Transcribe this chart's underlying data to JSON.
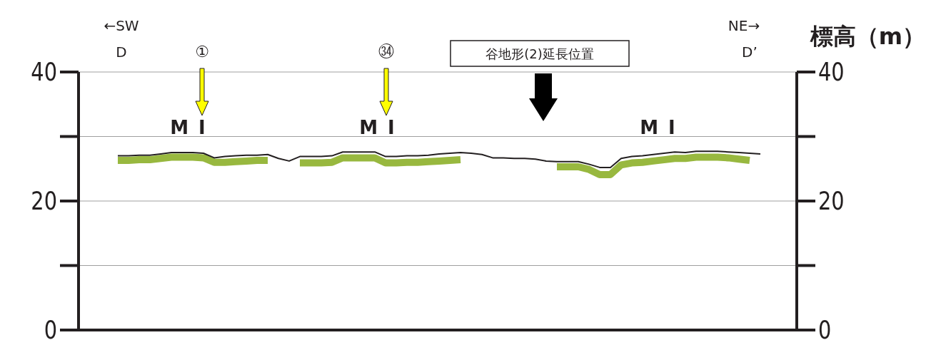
{
  "chart_data": {
    "type": "line",
    "categories": [
      null,
      null,
      null,
      null,
      null,
      null,
      null,
      null,
      null,
      null,
      null,
      null,
      null,
      null,
      null,
      null,
      null,
      null,
      null,
      null,
      null,
      null,
      null,
      null,
      null,
      null,
      null,
      null,
      null,
      null,
      null,
      null,
      null,
      null,
      null,
      null,
      null,
      null,
      null,
      null,
      null,
      null,
      null,
      null,
      null,
      null,
      null,
      null,
      null,
      null,
      null,
      null,
      null,
      null,
      null,
      null,
      null,
      null,
      null,
      null,
      null
    ],
    "series": [
      {
        "color": "#98b83f",
        "values": [
          26.3,
          26.3,
          26.4,
          26.4,
          26.6,
          26.8,
          26.8,
          26.8,
          26.7,
          26.0,
          26.0,
          26.1,
          26.2,
          26.3,
          26.3,
          null,
          null,
          25.9,
          25.9,
          25.9,
          26.0,
          26.7,
          26.7,
          26.7,
          26.7,
          25.9,
          25.9,
          26.0,
          26.0,
          26.1,
          26.2,
          26.3,
          26.4,
          null,
          null,
          null,
          null,
          null,
          null,
          null,
          null,
          25.3,
          25.3,
          25.3,
          24.9,
          24.1,
          24.1,
          25.6,
          25.9,
          26.0,
          26.2,
          26.4,
          26.6,
          26.6,
          26.8,
          26.8,
          26.8,
          26.7,
          26.5,
          26.3,
          null
        ]
      },
      {
        "color": "#231f20",
        "values": [
          27.0,
          27.0,
          27.1,
          27.1,
          27.3,
          27.5,
          27.5,
          27.5,
          27.4,
          26.7,
          26.9,
          27.0,
          27.1,
          27.1,
          27.2,
          26.6,
          26.2,
          26.9,
          26.9,
          26.9,
          27.0,
          27.6,
          27.6,
          27.6,
          27.6,
          26.9,
          26.9,
          27.0,
          27.0,
          27.1,
          27.3,
          27.4,
          27.5,
          27.4,
          27.2,
          26.7,
          26.7,
          26.6,
          26.6,
          26.5,
          26.2,
          26.1,
          26.1,
          26.1,
          25.7,
          25.2,
          25.2,
          26.6,
          26.9,
          27.0,
          27.2,
          27.4,
          27.6,
          27.5,
          27.7,
          27.7,
          27.7,
          27.6,
          27.5,
          27.4,
          27.3
        ]
      }
    ],
    "ylim": [
      0,
      40
    ],
    "yticks": [
      0,
      {
        "value": 10,
        "label": null
      },
      20,
      {
        "value": 30,
        "label": null
      },
      40
    ],
    "y2lim": [
      0,
      40
    ],
    "y2ticks": [
      0,
      {
        "value": 10,
        "label": null
      },
      20,
      {
        "value": 30,
        "label": null
      },
      40
    ],
    "y2label": "標高（m）",
    "grid": "y",
    "marker": "none",
    "line_style": "solid",
    "annotations": [
      "←SW",
      "D",
      "NE→",
      "D’",
      "①",
      "㉞",
      "谷地形(2)延長位置",
      "MⅠ",
      "MⅠ",
      "MⅠ"
    ]
  }
}
